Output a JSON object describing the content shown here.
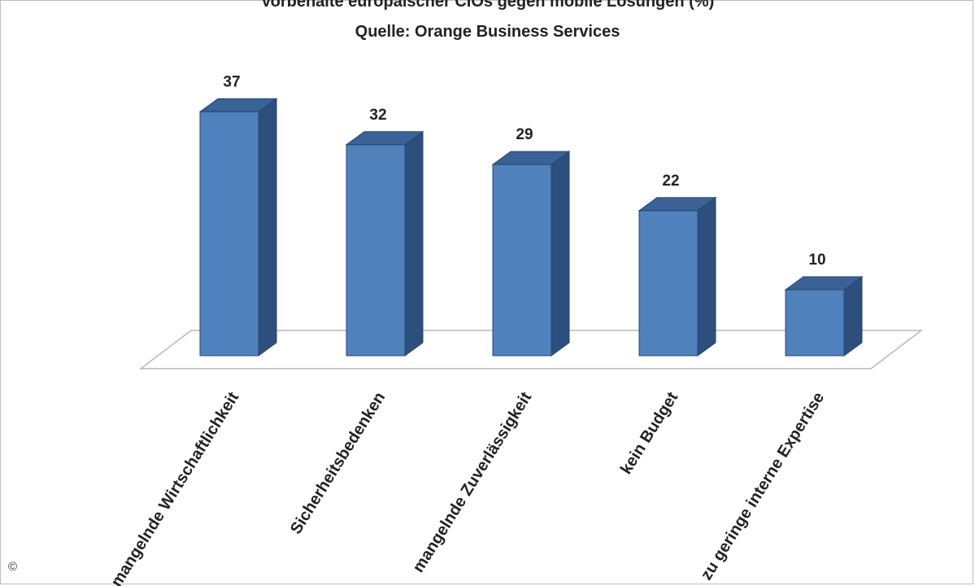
{
  "chart_data": {
    "type": "bar",
    "style": "3d-column",
    "title": "Vorbehalte europäischer CIOs gegen mobile Lösungen (%)",
    "subtitle": "Quelle: Orange Business Services",
    "categories": [
      "mangelnde Wirtschaftlichkeit",
      "Sicherheitsbedenken",
      "mangelnde Zuverlässigkeit",
      "kein Budget",
      "zu geringe interne Expertise"
    ],
    "values": [
      37,
      32,
      29,
      22,
      10
    ],
    "xlabel": "",
    "ylabel": "",
    "ylim": [
      0,
      40
    ],
    "grid": false,
    "legend": false,
    "data_labels": true,
    "colors": {
      "front": "#4f81bd",
      "side": "#2c4f7c",
      "top": "#3a6296",
      "edge": "#28466e"
    }
  },
  "copyright_mark": "©"
}
